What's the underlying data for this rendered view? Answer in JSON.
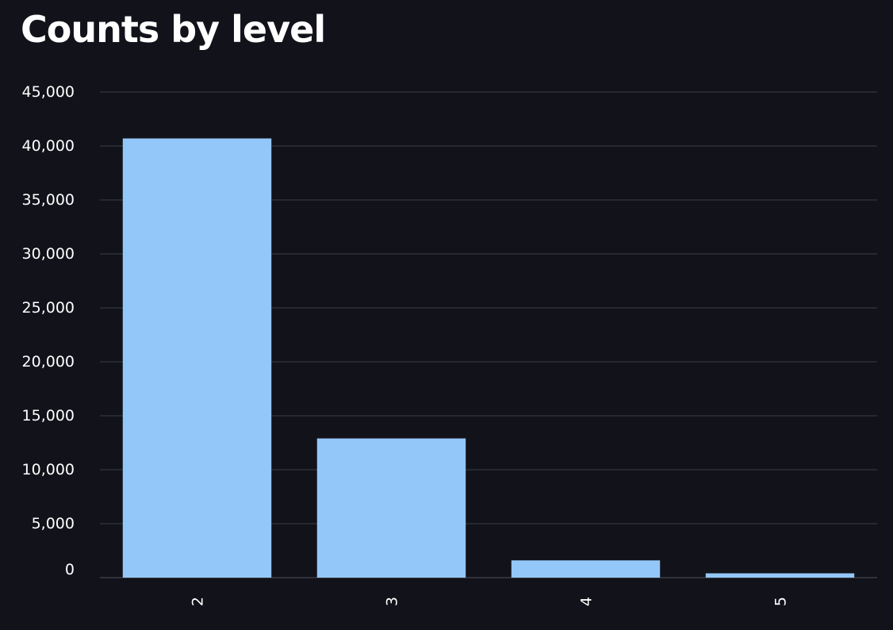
{
  "chart_data": {
    "type": "bar",
    "title": "Counts by level",
    "categories": [
      "2",
      "3",
      "4",
      "5"
    ],
    "values": [
      40700,
      12900,
      1600,
      400
    ],
    "xlabel": "",
    "ylabel": "",
    "ylim": [
      0,
      45000
    ],
    "yticks": [
      0,
      5000,
      10000,
      15000,
      20000,
      25000,
      30000,
      35000,
      40000,
      45000
    ],
    "ytick_labels": [
      "0",
      "5,000",
      "10,000",
      "15,000",
      "20,000",
      "25,000",
      "30,000",
      "35,000",
      "40,000",
      "45,000"
    ],
    "grid": true,
    "legend": "none",
    "colors": {
      "background": "#12131a",
      "bar": "#94c7f9",
      "grid": "#3a3d46",
      "text": "#ffffff"
    }
  }
}
